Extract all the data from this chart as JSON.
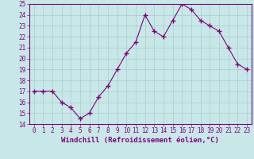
{
  "x": [
    0,
    1,
    2,
    3,
    4,
    5,
    6,
    7,
    8,
    9,
    10,
    11,
    12,
    13,
    14,
    15,
    16,
    17,
    18,
    19,
    20,
    21,
    22,
    23
  ],
  "y": [
    17.0,
    17.0,
    17.0,
    16.0,
    15.5,
    14.5,
    15.0,
    16.5,
    17.5,
    19.0,
    20.5,
    21.5,
    24.0,
    22.5,
    22.0,
    23.5,
    25.0,
    24.5,
    23.5,
    23.0,
    22.5,
    21.0,
    19.5,
    19.0
  ],
  "line_color": "#800080",
  "marker": "+",
  "marker_size": 4,
  "bg_color": "#c8e8e8",
  "grid_color": "#aacccc",
  "xlabel": "Windchill (Refroidissement éolien,°C)",
  "ylim": [
    14,
    25
  ],
  "xlim": [
    -0.5,
    23.5
  ],
  "yticks": [
    14,
    15,
    16,
    17,
    18,
    19,
    20,
    21,
    22,
    23,
    24,
    25
  ],
  "xticks": [
    0,
    1,
    2,
    3,
    4,
    5,
    6,
    7,
    8,
    9,
    10,
    11,
    12,
    13,
    14,
    15,
    16,
    17,
    18,
    19,
    20,
    21,
    22,
    23
  ],
  "tick_color": "#800080",
  "label_color": "#800080",
  "axis_color": "#800080",
  "tick_fontsize": 5.5,
  "xlabel_fontsize": 6.5
}
